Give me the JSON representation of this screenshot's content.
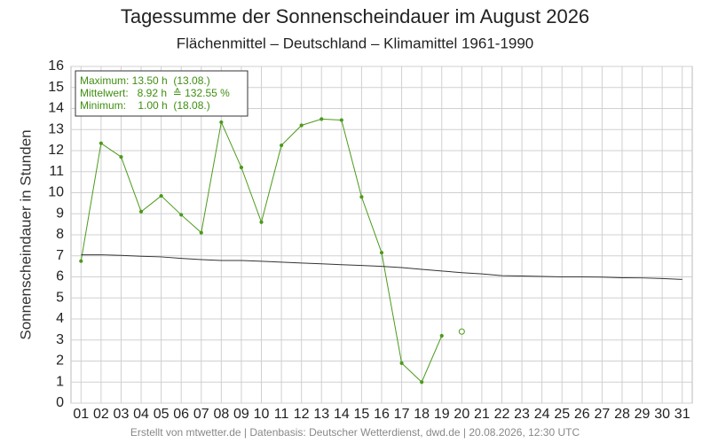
{
  "chart_data": {
    "type": "line",
    "title": "Tagessumme der Sonnenscheindauer im August 2026",
    "subtitle": "Flächenmittel – Deutschland – Klimamittel 1961-1990",
    "y_label": "Sonnenscheindauer in Stunden",
    "annotations": [
      "Maximum: 13.50 h  (13.08.)",
      "Mittelwert:   8.92 h  ≙ 132.55 %",
      "Minimum:    1.00 h  (18.08.)"
    ],
    "source": "Erstellt von mtwetter.de | Datenbasis: Deutscher Wetterdienst, dwd.de | 20.08.2026, 12:30 UTC",
    "categories": [
      "01",
      "02",
      "03",
      "04",
      "05",
      "06",
      "07",
      "08",
      "09",
      "10",
      "11",
      "12",
      "13",
      "14",
      "15",
      "16",
      "17",
      "18",
      "19",
      "20",
      "21",
      "22",
      "23",
      "24",
      "25",
      "26",
      "27",
      "28",
      "29",
      "30",
      "31"
    ],
    "series": [
      {
        "color": "#4c9a1a",
        "marker": "dot",
        "values": [
          6.75,
          12.35,
          11.7,
          9.1,
          9.85,
          8.95,
          8.1,
          13.35,
          11.2,
          8.6,
          12.25,
          13.2,
          13.5,
          13.45,
          9.8,
          7.15,
          1.9,
          1.0,
          3.2,
          null,
          null,
          null,
          null,
          null,
          null,
          null,
          null,
          null,
          null,
          null,
          null
        ]
      },
      {
        "color": "#4c9a1a",
        "marker": "open",
        "values": [
          null,
          null,
          null,
          null,
          null,
          null,
          null,
          null,
          null,
          null,
          null,
          null,
          null,
          null,
          null,
          null,
          null,
          null,
          null,
          3.4,
          null,
          null,
          null,
          null,
          null,
          null,
          null,
          null,
          null,
          null,
          null
        ]
      },
      {
        "color": "#333333",
        "marker": "none",
        "values": [
          7.05,
          7.05,
          7.02,
          6.98,
          6.95,
          6.88,
          6.82,
          6.78,
          6.78,
          6.74,
          6.7,
          6.66,
          6.62,
          6.58,
          6.54,
          6.5,
          6.44,
          6.36,
          6.28,
          6.2,
          6.14,
          6.06,
          6.04,
          6.02,
          6.0,
          6.0,
          5.99,
          5.96,
          5.95,
          5.92,
          5.88
        ]
      }
    ],
    "ylim": [
      0,
      16
    ],
    "yticks": [
      0,
      1,
      2,
      3,
      4,
      5,
      6,
      7,
      8,
      9,
      10,
      11,
      12,
      13,
      14,
      15,
      16
    ],
    "grid": true
  }
}
